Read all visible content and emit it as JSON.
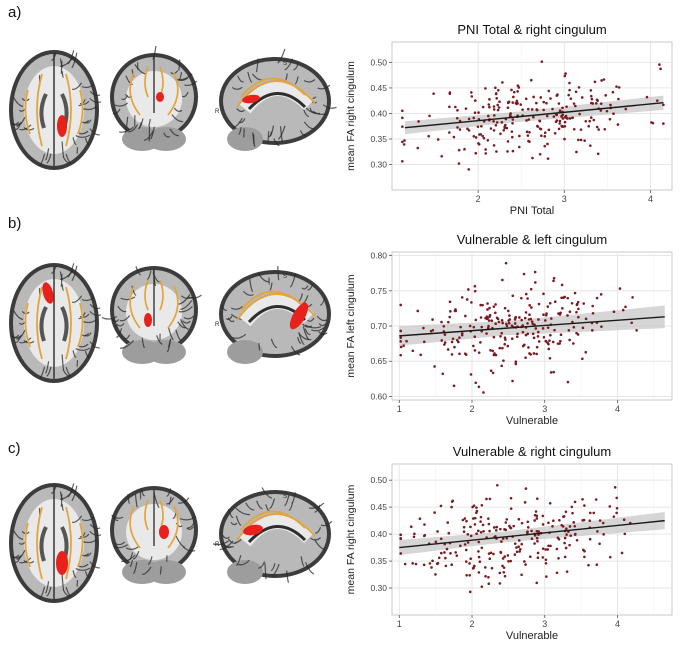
{
  "figure": {
    "panels": [
      {
        "letter": "a)"
      },
      {
        "letter": "b)"
      },
      {
        "letter": "c)"
      }
    ],
    "brain_labels": {
      "s_marker": "S",
      "r_marker": "R"
    },
    "colors": {
      "brain_highlight": "#e8211c",
      "tract": "#e2a43b",
      "point": "#7a1b22",
      "ribbon": "#c8c8c8",
      "line": "#1a1a1a",
      "panel_bg": "#ebebeb"
    }
  },
  "chart_data": [
    {
      "type": "scatter",
      "title": "PNI Total & right cingulum",
      "xlabel": "PNI Total",
      "ylabel": "mean FA right cingulum",
      "xlim": [
        1.0,
        4.25
      ],
      "ylim": [
        0.25,
        0.54
      ],
      "xticks": [
        2,
        3,
        4
      ],
      "yticks": [
        0.3,
        0.35,
        0.4,
        0.45,
        0.5
      ],
      "ytick_labels": [
        "0.30",
        "0.35",
        "0.40",
        "0.45",
        "0.50"
      ],
      "fit": {
        "x": [
          1.15,
          4.15
        ],
        "y": [
          0.372,
          0.421
        ],
        "ci": [
          0.01,
          0.014
        ]
      },
      "grid": true,
      "seed": 11,
      "n_points": 260,
      "x_center": 2.6,
      "x_spread": 0.65,
      "y_noise": 0.038
    },
    {
      "type": "scatter",
      "title": "Vulnerable & left cingulum",
      "xlabel": "Vulnerable",
      "ylabel": "mean FA left cingulum",
      "xlim": [
        0.9,
        4.75
      ],
      "ylim": [
        0.595,
        0.805
      ],
      "xticks": [
        1,
        2,
        3,
        4
      ],
      "yticks": [
        0.6,
        0.65,
        0.7,
        0.75,
        0.8
      ],
      "ytick_labels": [
        "0.60",
        "0.65",
        "0.70",
        "0.75",
        "0.80"
      ],
      "fit": {
        "x": [
          1.0,
          4.65
        ],
        "y": [
          0.686,
          0.713
        ],
        "ci": [
          0.01,
          0.016
        ]
      },
      "grid": true,
      "seed": 23,
      "n_points": 260,
      "x_center": 2.5,
      "x_spread": 0.7,
      "y_noise": 0.03
    },
    {
      "type": "scatter",
      "title": "Vulnerable & right cingulum",
      "xlabel": "Vulnerable",
      "ylabel": "mean FA right cingulum",
      "xlim": [
        0.9,
        4.75
      ],
      "ylim": [
        0.25,
        0.53
      ],
      "xticks": [
        1,
        2,
        3,
        4
      ],
      "yticks": [
        0.3,
        0.35,
        0.4,
        0.45,
        0.5
      ],
      "ytick_labels": [
        "0.30",
        "0.35",
        "0.40",
        "0.45",
        "0.50"
      ],
      "fit": {
        "x": [
          1.0,
          4.65
        ],
        "y": [
          0.375,
          0.425
        ],
        "ci": [
          0.01,
          0.016
        ]
      },
      "grid": true,
      "seed": 37,
      "n_points": 260,
      "x_center": 2.5,
      "x_spread": 0.7,
      "y_noise": 0.04
    }
  ]
}
